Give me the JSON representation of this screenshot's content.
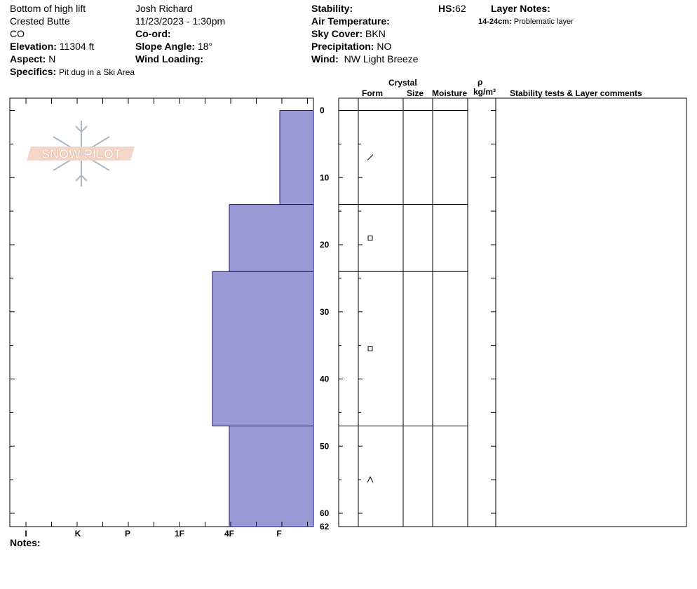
{
  "header": {
    "location": "Bottom of high lift",
    "region": "Crested Butte",
    "state": "CO",
    "elevation_label": "Elevation:",
    "elevation_value": "11304 ft",
    "aspect_label": "Aspect:",
    "aspect_value": "N",
    "specifics_label": "Specifics:",
    "specifics_value": "Pit dug in a Ski Area",
    "observer": "Josh Richard",
    "datetime": "11/23/2023 - 1:30pm",
    "coord_label": "Co-ord:",
    "slope_label": "Slope Angle:",
    "slope_value": "18°",
    "wind_loading_label": "Wind Loading:",
    "stability_label": "Stability:",
    "air_temp_label": "Air Temperature:",
    "sky_label": "Sky Cover:",
    "sky_value": "BKN",
    "precip_label": "Precipitation:",
    "precip_value": "NO",
    "wind_label": "Wind:",
    "wind_value": "NW Light Breeze",
    "hs_label": "HS:",
    "hs_value": "62",
    "layer_notes_label": "Layer Notes:",
    "layer_note_range": "14-24cm:",
    "layer_note_text": "Problematic layer"
  },
  "table_headers": {
    "crystal": "Crystal",
    "form": "Form",
    "size": "Size",
    "moisture": "Moisture",
    "rho": "ρ",
    "density_unit": "kg/m³",
    "comments": "Stability tests & Layer comments"
  },
  "notes_label": "Notes:",
  "logo_text": "SNOW PILOT",
  "colors": {
    "layer_fill": "#9b99d6",
    "layer_stroke": "#1a1580",
    "logo_text": "#e9b9a2",
    "logo_flake": "#a9b8c6"
  },
  "chart_data": {
    "type": "bar",
    "orientation": "horizontal",
    "title": "",
    "xlabel": "",
    "ylabel": "",
    "hardness_scale": [
      "I",
      "K",
      "P",
      "1F",
      "4F",
      "F"
    ],
    "depth_ticks": [
      "0",
      "10",
      "20",
      "30",
      "40",
      "50",
      "60",
      "62"
    ],
    "ylim": [
      0,
      62
    ],
    "layers": [
      {
        "top": 0,
        "bottom": 14,
        "hardness": "F",
        "form_icon": "slash-icon"
      },
      {
        "top": 14,
        "bottom": 24,
        "hardness": "4F",
        "form_icon": "square-icon"
      },
      {
        "top": 24,
        "bottom": 47,
        "hardness": "4F+",
        "form_icon": "square-icon"
      },
      {
        "top": 47,
        "bottom": 62,
        "hardness": "4F",
        "form_icon": "caret-icon"
      }
    ],
    "form_icon_depths": [
      7,
      19,
      35.5,
      55
    ]
  }
}
